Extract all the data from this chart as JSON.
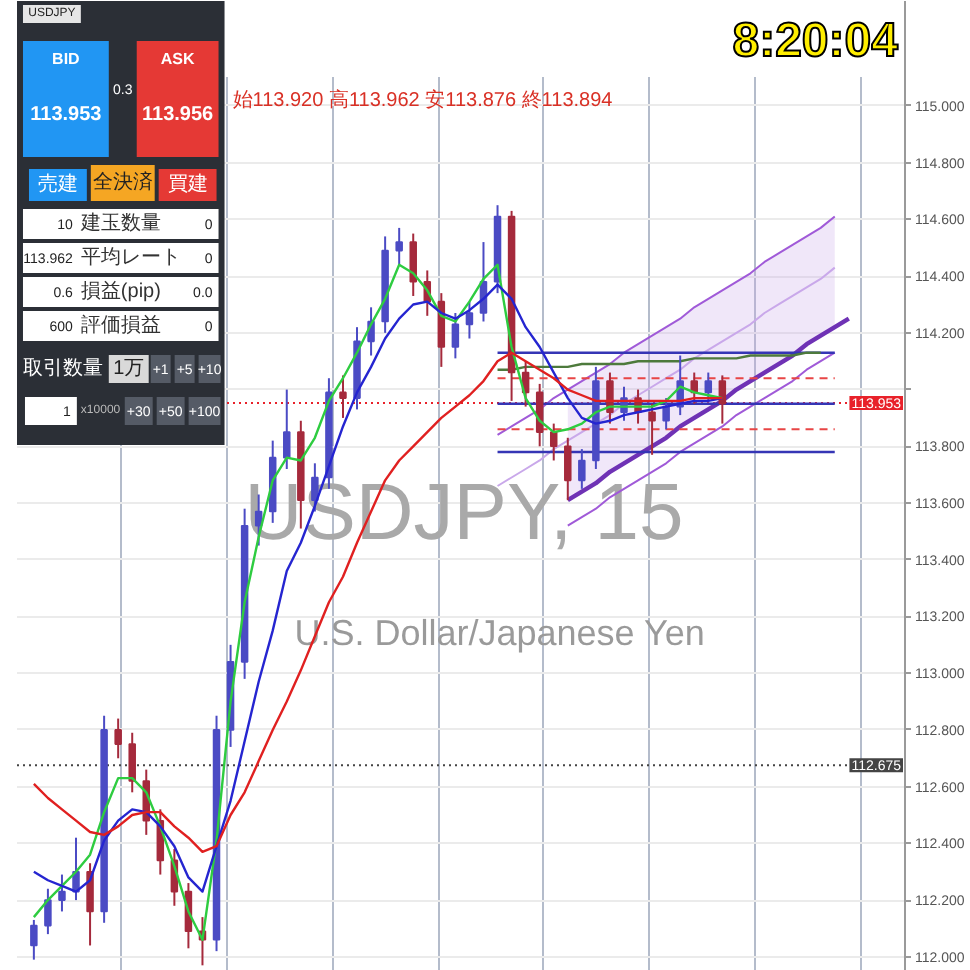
{
  "chart_data": {
    "type": "candlestick",
    "title": "USDJPY, 15",
    "subtitle": "U.S. Dollar/Japanese Yen",
    "categories": [
      null,
      null,
      null,
      null,
      null,
      null,
      null,
      null,
      null,
      null,
      null,
      null,
      null,
      null,
      null,
      null,
      null,
      null,
      null,
      null,
      null,
      null,
      null,
      null,
      null,
      null,
      null,
      null,
      null,
      null,
      null,
      null,
      null,
      null,
      null,
      null,
      null,
      null,
      null,
      null,
      null,
      null,
      null,
      null,
      null,
      null,
      null,
      null,
      null,
      null,
      null,
      null,
      null,
      null,
      null,
      null,
      null,
      null,
      null,
      null
    ],
    "colors": [
      "#4b4bc4",
      "#4b4bc4",
      "#4b4bc4",
      "#4b4bc4",
      "#a52a3c",
      "#4b4bc4",
      "#a52a3c",
      "#a52a3c",
      "#a52a3c",
      "#a52a3c",
      "#a52a3c",
      "#a52a3c",
      "#a52a3c",
      "#4b4bc4",
      "#4b4bc4",
      "#4b4bc4",
      "#4b4bc4",
      "#4b4bc4",
      "#4b4bc4",
      "#a52a3c",
      "#4b4bc4",
      "#4b4bc4",
      "#a52a3c",
      "#4b4bc4",
      "#4b4bc4",
      "#4b4bc4",
      "#4b4bc4",
      "#a52a3c",
      "#a52a3c",
      "#a52a3c",
      "#4b4bc4",
      "#4b4bc4",
      "#4b4bc4",
      "#4b4bc4",
      "#a52a3c",
      "#a52a3c",
      "#a52a3c",
      "#a52a3c",
      "#a52a3c",
      "#4b4bc4",
      "#4b4bc4",
      "#a52a3c",
      "#4b4bc4",
      "#a52a3c",
      "#a52a3c",
      "#4b4bc4",
      "#4b4bc4",
      "#a52a3c",
      "#4b4bc4",
      "#a52a3c",
      null,
      null,
      null,
      null,
      null,
      null,
      null,
      null,
      null,
      null
    ],
    "ohlc": [
      [
        112.04,
        112.13,
        111.99,
        112.11
      ],
      [
        112.11,
        112.24,
        112.08,
        112.2
      ],
      [
        112.2,
        112.29,
        112.16,
        112.23
      ],
      [
        112.23,
        112.42,
        112.2,
        112.3
      ],
      [
        112.3,
        112.33,
        112.04,
        112.16
      ],
      [
        112.16,
        112.85,
        112.12,
        112.8
      ],
      [
        112.8,
        112.84,
        112.7,
        112.75
      ],
      [
        112.75,
        112.79,
        112.58,
        112.62
      ],
      [
        112.62,
        112.66,
        112.43,
        112.48
      ],
      [
        112.48,
        112.52,
        112.29,
        112.34
      ],
      [
        112.34,
        112.38,
        112.18,
        112.23
      ],
      [
        112.23,
        112.26,
        112.03,
        112.09
      ],
      [
        112.09,
        112.14,
        111.97,
        112.06
      ],
      [
        112.06,
        112.85,
        112.02,
        112.8
      ],
      [
        112.8,
        113.1,
        112.74,
        113.04
      ],
      [
        113.04,
        113.58,
        112.98,
        113.52
      ],
      [
        113.52,
        113.63,
        113.45,
        113.57
      ],
      [
        113.57,
        113.82,
        113.53,
        113.76
      ],
      [
        113.76,
        114.0,
        113.72,
        113.85
      ],
      [
        113.85,
        113.89,
        113.51,
        113.61
      ],
      [
        113.61,
        113.74,
        113.57,
        113.69
      ],
      [
        113.69,
        114.04,
        113.65,
        113.99
      ],
      [
        113.99,
        114.05,
        113.9,
        113.97
      ],
      [
        113.97,
        114.22,
        113.93,
        114.17
      ],
      [
        114.17,
        114.29,
        114.12,
        114.24
      ],
      [
        114.24,
        114.54,
        114.2,
        114.49
      ],
      [
        114.49,
        114.57,
        114.44,
        114.52
      ],
      [
        114.52,
        114.55,
        114.33,
        114.38
      ],
      [
        114.38,
        114.42,
        114.26,
        114.31
      ],
      [
        114.31,
        114.34,
        114.08,
        114.15
      ],
      [
        114.15,
        114.27,
        114.11,
        114.23
      ],
      [
        114.23,
        114.31,
        114.18,
        114.27
      ],
      [
        114.27,
        114.52,
        114.24,
        114.38
      ],
      [
        114.38,
        114.65,
        114.34,
        114.61
      ],
      [
        114.61,
        114.63,
        113.96,
        114.06
      ],
      [
        114.06,
        114.1,
        113.94,
        113.99
      ],
      [
        113.99,
        114.02,
        113.8,
        113.85
      ],
      [
        113.85,
        113.88,
        113.75,
        113.8
      ],
      [
        113.8,
        113.83,
        113.61,
        113.68
      ],
      [
        113.68,
        113.79,
        113.65,
        113.75
      ],
      [
        113.75,
        114.08,
        113.72,
        114.03
      ],
      [
        114.03,
        114.06,
        113.88,
        113.92
      ],
      [
        113.92,
        114.01,
        113.89,
        113.97
      ],
      [
        113.97,
        114.0,
        113.88,
        113.92
      ],
      [
        113.92,
        113.95,
        113.77,
        113.89
      ],
      [
        113.89,
        113.97,
        113.86,
        113.94
      ],
      [
        113.94,
        114.12,
        113.91,
        114.03
      ],
      [
        114.03,
        114.06,
        113.95,
        113.99
      ],
      [
        113.99,
        114.06,
        113.96,
        114.03
      ],
      [
        114.03,
        114.05,
        113.88,
        113.95
      ],
      null,
      null,
      null,
      null,
      null,
      null,
      null,
      null,
      null,
      null
    ],
    "series": [
      {
        "type": "line",
        "color": "#2ecc40",
        "values": [
          112.14,
          112.2,
          112.25,
          112.3,
          112.36,
          112.51,
          112.63,
          112.63,
          112.58,
          112.46,
          112.32,
          112.16,
          112.06,
          112.41,
          112.9,
          113.25,
          113.48,
          113.68,
          113.76,
          113.75,
          113.83,
          113.96,
          114.04,
          114.13,
          114.23,
          114.32,
          114.44,
          114.41,
          114.35,
          114.26,
          114.24,
          114.31,
          114.39,
          114.44,
          114.15,
          113.97,
          113.89,
          113.85,
          113.86,
          113.88,
          113.92,
          113.94,
          113.94,
          113.94,
          113.94,
          113.96,
          114.01,
          113.99,
          113.98,
          113.97,
          null,
          null,
          null,
          null,
          null,
          null,
          null,
          null,
          null,
          null
        ]
      },
      {
        "type": "line",
        "color": "#2525d0",
        "values": [
          112.3,
          112.27,
          112.25,
          112.23,
          112.27,
          112.41,
          112.48,
          112.52,
          112.51,
          112.46,
          112.39,
          112.28,
          112.23,
          112.39,
          112.55,
          112.76,
          112.97,
          113.15,
          113.36,
          113.46,
          113.59,
          113.73,
          113.87,
          113.99,
          114.08,
          114.18,
          114.25,
          114.3,
          114.31,
          114.27,
          114.25,
          114.28,
          114.32,
          114.37,
          114.32,
          114.22,
          114.15,
          114.06,
          113.97,
          113.9,
          113.88,
          113.89,
          113.91,
          113.92,
          113.93,
          113.94,
          113.95,
          113.96,
          113.96,
          113.97,
          null,
          null,
          null,
          null,
          null,
          null,
          null,
          null,
          null,
          null
        ]
      },
      {
        "type": "line",
        "color": "#e02020",
        "values": [
          112.61,
          112.56,
          112.52,
          112.48,
          112.44,
          112.43,
          112.46,
          112.5,
          112.51,
          112.51,
          112.46,
          112.42,
          112.37,
          112.39,
          112.5,
          112.58,
          112.69,
          112.8,
          112.9,
          113.01,
          113.13,
          113.25,
          113.34,
          113.46,
          113.57,
          113.68,
          113.75,
          113.8,
          113.85,
          113.9,
          113.94,
          113.98,
          114.03,
          114.1,
          114.13,
          114.1,
          114.07,
          114.04,
          114.0,
          113.98,
          113.96,
          113.96,
          113.96,
          113.96,
          113.96,
          113.96,
          113.96,
          113.97,
          113.97,
          113.97,
          null,
          null,
          null,
          null,
          null,
          null,
          null,
          null,
          null,
          null
        ]
      },
      {
        "type": "line",
        "color": "#a05ad8",
        "values": [
          null,
          null,
          null,
          null,
          null,
          null,
          null,
          null,
          null,
          null,
          null,
          null,
          null,
          null,
          null,
          null,
          null,
          null,
          null,
          null,
          null,
          null,
          null,
          null,
          null,
          null,
          null,
          null,
          null,
          null,
          null,
          null,
          null,
          113.84,
          113.87,
          113.9,
          113.93,
          113.97,
          114.0,
          114.03,
          114.06,
          114.09,
          114.13,
          114.16,
          114.19,
          114.22,
          114.25,
          114.29,
          114.32,
          114.35,
          114.38,
          114.41,
          114.45,
          114.48,
          114.51,
          114.54,
          114.57,
          114.61,
          null,
          null
        ]
      },
      {
        "type": "line",
        "color": "#c9a8ea",
        "values": [
          null,
          null,
          null,
          null,
          null,
          null,
          null,
          null,
          null,
          null,
          null,
          null,
          null,
          null,
          null,
          null,
          null,
          null,
          null,
          null,
          null,
          null,
          null,
          null,
          null,
          null,
          null,
          null,
          null,
          null,
          null,
          null,
          null,
          113.66,
          113.69,
          113.72,
          113.75,
          113.79,
          113.82,
          113.85,
          113.88,
          113.91,
          113.95,
          113.98,
          114.01,
          114.04,
          114.07,
          114.11,
          114.14,
          114.17,
          114.2,
          114.23,
          114.27,
          114.3,
          114.33,
          114.36,
          114.39,
          114.43,
          null,
          null
        ],
        "lower": [
          null,
          null,
          null,
          null,
          null,
          null,
          null,
          null,
          null,
          null,
          null,
          null,
          null,
          null,
          null,
          null,
          null,
          null,
          null,
          null,
          null,
          null,
          null,
          null,
          null,
          null,
          null,
          null,
          null,
          null,
          null,
          null,
          null,
          null,
          null,
          null,
          null,
          null,
          113.61,
          113.64,
          113.67,
          113.71,
          113.74,
          113.77,
          113.8,
          113.83,
          113.87,
          113.9,
          113.93,
          113.96,
          114.0,
          114.03,
          114.06,
          114.09,
          114.12,
          114.16,
          114.19,
          114.22,
          null,
          null
        ],
        "upper": [
          null,
          null,
          null,
          null,
          null,
          null,
          null,
          null,
          null,
          null,
          null,
          null,
          null,
          null,
          null,
          null,
          null,
          null,
          null,
          null,
          null,
          null,
          null,
          null,
          null,
          null,
          null,
          null,
          null,
          null,
          null,
          null,
          null,
          null,
          null,
          null,
          null,
          null,
          114.0,
          114.03,
          114.06,
          114.09,
          114.13,
          114.16,
          114.19,
          114.22,
          114.25,
          114.29,
          114.32,
          114.35,
          114.38,
          114.41,
          114.45,
          114.48,
          114.51,
          114.54,
          114.57,
          114.61,
          null,
          null
        ]
      },
      {
        "type": "line",
        "color": "#6f32b5",
        "values": [
          null,
          null,
          null,
          null,
          null,
          null,
          null,
          null,
          null,
          null,
          null,
          null,
          null,
          null,
          null,
          null,
          null,
          null,
          null,
          null,
          null,
          null,
          null,
          null,
          null,
          null,
          null,
          null,
          null,
          null,
          null,
          null,
          null,
          null,
          null,
          null,
          null,
          null,
          113.61,
          113.64,
          113.67,
          113.71,
          113.74,
          113.77,
          113.8,
          113.83,
          113.87,
          113.9,
          113.93,
          113.96,
          114.0,
          114.03,
          114.06,
          114.09,
          114.12,
          114.16,
          114.19,
          114.22,
          114.25,
          null
        ]
      },
      {
        "type": "line",
        "color": "#a05ad8",
        "values": [
          null,
          null,
          null,
          null,
          null,
          null,
          null,
          null,
          null,
          null,
          null,
          null,
          null,
          null,
          null,
          null,
          null,
          null,
          null,
          null,
          null,
          null,
          null,
          null,
          null,
          null,
          null,
          null,
          null,
          null,
          null,
          null,
          null,
          null,
          null,
          null,
          null,
          null,
          113.52,
          113.55,
          113.58,
          113.62,
          113.65,
          113.68,
          113.71,
          113.74,
          113.78,
          113.81,
          113.84,
          113.87,
          113.91,
          113.94,
          113.97,
          114.0,
          114.03,
          114.07,
          114.1,
          114.13,
          null,
          null
        ]
      },
      {
        "type": "line",
        "color": "#3535b5",
        "values": [
          null,
          null,
          null,
          null,
          null,
          null,
          null,
          null,
          null,
          null,
          null,
          null,
          null,
          null,
          null,
          null,
          null,
          null,
          null,
          null,
          null,
          null,
          null,
          null,
          null,
          null,
          null,
          null,
          null,
          null,
          null,
          null,
          null,
          114.13,
          114.13,
          114.13,
          114.13,
          114.13,
          114.13,
          114.13,
          114.13,
          114.13,
          114.13,
          114.13,
          114.13,
          114.13,
          114.13,
          114.13,
          114.13,
          114.13,
          114.13,
          114.13,
          114.13,
          114.13,
          114.13,
          114.13,
          114.13,
          114.13,
          null,
          null
        ]
      },
      {
        "type": "line",
        "color": "#3535b5",
        "values": [
          null,
          null,
          null,
          null,
          null,
          null,
          null,
          null,
          null,
          null,
          null,
          null,
          null,
          null,
          null,
          null,
          null,
          null,
          null,
          null,
          null,
          null,
          null,
          null,
          null,
          null,
          null,
          null,
          null,
          null,
          null,
          null,
          null,
          113.95,
          113.95,
          113.95,
          113.95,
          113.95,
          113.95,
          113.95,
          113.95,
          113.95,
          113.95,
          113.95,
          113.95,
          113.95,
          113.95,
          113.95,
          113.95,
          113.95,
          113.95,
          113.95,
          113.95,
          113.95,
          113.95,
          113.95,
          113.95,
          113.95,
          null,
          null
        ]
      },
      {
        "type": "line",
        "color": "#3535b5",
        "values": [
          null,
          null,
          null,
          null,
          null,
          null,
          null,
          null,
          null,
          null,
          null,
          null,
          null,
          null,
          null,
          null,
          null,
          null,
          null,
          null,
          null,
          null,
          null,
          null,
          null,
          null,
          null,
          null,
          null,
          null,
          null,
          null,
          null,
          113.78,
          113.78,
          113.78,
          113.78,
          113.78,
          113.78,
          113.78,
          113.78,
          113.78,
          113.78,
          113.78,
          113.78,
          113.78,
          113.78,
          113.78,
          113.78,
          113.78,
          113.78,
          113.78,
          113.78,
          113.78,
          113.78,
          113.78,
          113.78,
          113.78,
          null,
          null
        ]
      },
      {
        "type": "line",
        "color": "#4d7a3c",
        "values": [
          null,
          null,
          null,
          null,
          null,
          null,
          null,
          null,
          null,
          null,
          null,
          null,
          null,
          null,
          null,
          null,
          null,
          null,
          null,
          null,
          null,
          null,
          null,
          null,
          null,
          null,
          null,
          null,
          null,
          null,
          null,
          null,
          null,
          114.07,
          114.07,
          114.08,
          114.08,
          114.08,
          114.08,
          114.09,
          114.09,
          114.09,
          114.09,
          114.1,
          114.1,
          114.1,
          114.1,
          114.11,
          114.11,
          114.11,
          114.11,
          114.12,
          114.12,
          114.12,
          114.12,
          114.13,
          114.13,
          null,
          null,
          null
        ]
      },
      {
        "type": "line",
        "color": "#e84545",
        "line_style": "dashed",
        "values": [
          null,
          null,
          null,
          null,
          null,
          null,
          null,
          null,
          null,
          null,
          null,
          null,
          null,
          null,
          null,
          null,
          null,
          null,
          null,
          null,
          null,
          null,
          null,
          null,
          null,
          null,
          null,
          null,
          null,
          null,
          null,
          null,
          null,
          114.04,
          114.04,
          114.04,
          114.04,
          114.04,
          114.04,
          114.04,
          114.04,
          114.04,
          114.04,
          114.04,
          114.04,
          114.04,
          114.04,
          114.04,
          114.04,
          114.04,
          114.04,
          114.04,
          114.04,
          114.04,
          114.04,
          114.04,
          114.04,
          114.04,
          null,
          null
        ]
      },
      {
        "type": "line",
        "color": "#e84545",
        "line_style": "dashed",
        "values": [
          null,
          null,
          null,
          null,
          null,
          null,
          null,
          null,
          null,
          null,
          null,
          null,
          null,
          null,
          null,
          null,
          null,
          null,
          null,
          null,
          null,
          null,
          null,
          null,
          null,
          null,
          null,
          null,
          null,
          null,
          null,
          null,
          null,
          113.86,
          113.86,
          113.86,
          113.86,
          113.86,
          113.86,
          113.86,
          113.86,
          113.86,
          113.86,
          113.86,
          113.86,
          113.86,
          113.86,
          113.86,
          113.86,
          113.86,
          113.86,
          113.86,
          113.86,
          113.86,
          113.86,
          113.86,
          113.86,
          113.86,
          null,
          null
        ]
      }
    ],
    "ylim": [
      111.95,
      115.37
    ],
    "yticks": [
      {
        "value": 112,
        "label": "112.000"
      },
      {
        "value": 112.2,
        "label": "112.200"
      },
      {
        "value": 112.4,
        "label": "112.400"
      },
      {
        "value": 112.6,
        "label": "112.600"
      },
      {
        "value": 112.8,
        "label": "112.800"
      },
      {
        "value": 113,
        "label": "113.000"
      },
      {
        "value": 113.2,
        "label": "113.200"
      },
      {
        "value": 113.4,
        "label": "113.400"
      },
      {
        "value": 113.6,
        "label": "113.600"
      },
      {
        "value": 113.8,
        "label": "113.800"
      },
      {
        "value": 114,
        "label": null
      },
      {
        "value": 114.2,
        "label": "114.200"
      },
      {
        "value": 114.4,
        "label": "114.400"
      },
      {
        "value": 114.6,
        "label": "114.600"
      },
      {
        "value": 114.8,
        "label": "114.800"
      },
      {
        "value": 115,
        "label": "115.000"
      }
    ],
    "tick_labels": "y",
    "grid": true,
    "ref_lines": [
      {
        "axis": "y",
        "value": 113.953,
        "label": "113.953",
        "color": "#e8212a",
        "line_style": "dotted"
      },
      {
        "axis": "y",
        "value": 112.675,
        "label": "112.675",
        "color": "#444444",
        "line_style": "dotted"
      }
    ],
    "annotations": [
      "始113.920 高113.962 安113.876 終113.894",
      "8:20:04",
      "USDJPY",
      "BID",
      "113.953",
      "0.3",
      "ASK",
      "113.956",
      "売建",
      "全決済",
      "買建",
      "10",
      "建玉数量",
      "0",
      "113.962",
      "平均レート",
      "0",
      "0.6",
      "損益(pip)",
      "0.0",
      "600",
      "評価損益",
      "0",
      "取引数量",
      "1万",
      "+1",
      "+5",
      "+10",
      "1",
      "x10000",
      "+30",
      "+50",
      "+100"
    ]
  }
}
